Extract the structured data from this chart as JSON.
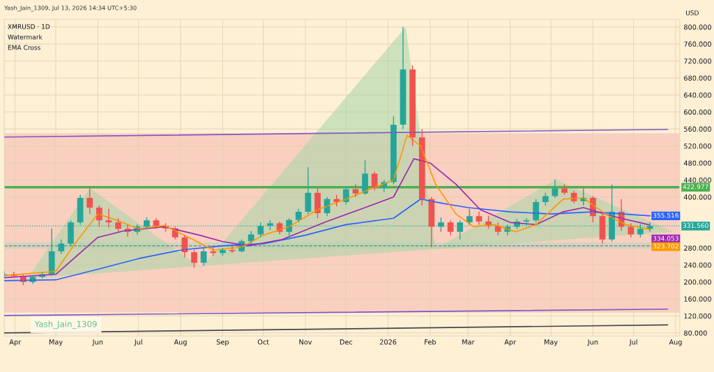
{
  "chart_data": {
    "type": "candlestick",
    "title": "XMRUSD · 1D",
    "subtitle": "Yash_Jain_1309, Jul 13, 2026 14:34 UTC+5:30",
    "ylabel": "USD",
    "annotations": [
      "Watermark",
      "EMA Cross",
      "Yash_Jain_1309"
    ],
    "x": [
      "2025-03-24",
      "2025-03-31",
      "2025-04-07",
      "2025-04-14",
      "2025-04-21",
      "2025-04-28",
      "2025-05-05",
      "2025-05-12",
      "2025-05-19",
      "2025-05-26",
      "2025-06-02",
      "2025-06-09",
      "2025-06-16",
      "2025-06-23",
      "2025-06-30",
      "2025-07-07",
      "2025-07-14",
      "2025-07-21",
      "2025-07-28",
      "2025-08-04",
      "2025-08-11",
      "2025-08-18",
      "2025-08-25",
      "2025-09-01",
      "2025-09-08",
      "2025-09-15",
      "2025-09-22",
      "2025-09-29",
      "2025-10-06",
      "2025-10-13",
      "2025-10-20",
      "2025-10-27",
      "2025-11-03",
      "2025-11-10",
      "2025-11-17",
      "2025-11-24",
      "2025-12-01",
      "2025-12-08",
      "2025-12-15",
      "2025-12-22",
      "2025-12-29",
      "2026-01-05",
      "2026-01-12",
      "2026-01-19",
      "2026-01-26",
      "2026-02-02",
      "2026-02-09",
      "2026-02-16",
      "2026-02-23",
      "2026-03-02",
      "2026-03-09",
      "2026-03-16",
      "2026-03-23",
      "2026-03-30",
      "2026-04-06",
      "2026-04-13",
      "2026-04-20",
      "2026-04-27",
      "2026-05-04",
      "2026-05-11",
      "2026-05-18",
      "2026-05-25",
      "2026-06-01",
      "2026-06-08",
      "2026-06-15",
      "2026-06-22",
      "2026-06-29",
      "2026-07-06",
      "2026-07-13"
    ],
    "ohlc": [
      [
        215,
        225,
        208,
        218
      ],
      [
        218,
        224,
        210,
        214
      ],
      [
        214,
        218,
        192,
        200
      ],
      [
        200,
        215,
        196,
        212
      ],
      [
        212,
        222,
        208,
        218
      ],
      [
        218,
        326,
        214,
        272
      ],
      [
        272,
        300,
        266,
        290
      ],
      [
        290,
        345,
        285,
        340
      ],
      [
        340,
        405,
        335,
        398
      ],
      [
        398,
        422,
        360,
        375
      ],
      [
        375,
        380,
        330,
        345
      ],
      [
        345,
        372,
        328,
        340
      ],
      [
        340,
        350,
        318,
        325
      ],
      [
        325,
        335,
        306,
        318
      ],
      [
        318,
        335,
        312,
        330
      ],
      [
        330,
        352,
        325,
        345
      ],
      [
        345,
        350,
        325,
        332
      ],
      [
        332,
        338,
        318,
        326
      ],
      [
        326,
        330,
        300,
        305
      ],
      [
        305,
        310,
        258,
        270
      ],
      [
        270,
        275,
        233,
        245
      ],
      [
        245,
        280,
        238,
        272
      ],
      [
        272,
        282,
        262,
        268
      ],
      [
        268,
        280,
        262,
        275
      ],
      [
        275,
        285,
        268,
        272
      ],
      [
        272,
        300,
        270,
        296
      ],
      [
        296,
        320,
        290,
        312
      ],
      [
        312,
        340,
        305,
        332
      ],
      [
        332,
        345,
        322,
        338
      ],
      [
        338,
        342,
        312,
        318
      ],
      [
        318,
        350,
        300,
        346
      ],
      [
        346,
        372,
        340,
        365
      ],
      [
        365,
        470,
        360,
        410
      ],
      [
        410,
        420,
        350,
        362
      ],
      [
        362,
        400,
        355,
        395
      ],
      [
        395,
        405,
        378,
        388
      ],
      [
        388,
        425,
        382,
        418
      ],
      [
        418,
        430,
        400,
        408
      ],
      [
        408,
        487,
        405,
        455
      ],
      [
        455,
        460,
        415,
        422
      ],
      [
        422,
        440,
        412,
        435
      ],
      [
        435,
        590,
        430,
        570
      ],
      [
        570,
        800,
        560,
        700
      ],
      [
        700,
        710,
        520,
        540
      ],
      [
        540,
        560,
        380,
        395
      ],
      [
        395,
        400,
        282,
        330
      ],
      [
        330,
        352,
        318,
        340
      ],
      [
        340,
        345,
        310,
        318
      ],
      [
        318,
        345,
        300,
        340
      ],
      [
        340,
        372,
        335,
        355
      ],
      [
        355,
        365,
        335,
        342
      ],
      [
        342,
        356,
        325,
        332
      ],
      [
        332,
        340,
        310,
        318
      ],
      [
        318,
        335,
        310,
        330
      ],
      [
        330,
        348,
        325,
        342
      ],
      [
        342,
        350,
        332,
        345
      ],
      [
        345,
        395,
        340,
        388
      ],
      [
        388,
        410,
        380,
        402
      ],
      [
        402,
        441,
        398,
        420
      ],
      [
        420,
        430,
        405,
        410
      ],
      [
        410,
        415,
        385,
        390
      ],
      [
        390,
        420,
        380,
        398
      ],
      [
        398,
        402,
        340,
        355
      ],
      [
        355,
        365,
        290,
        300
      ],
      [
        300,
        429,
        295,
        365
      ],
      [
        365,
        395,
        320,
        330
      ],
      [
        330,
        338,
        305,
        312
      ],
      [
        312,
        336,
        305,
        325
      ],
      [
        325,
        340,
        318,
        331.56
      ]
    ],
    "series": [
      {
        "type": "area",
        "color": "#a5d6a7",
        "x": [
          "2025-04-10",
          "2025-05-26",
          "2025-08-16",
          "2026-01-14",
          "2026-02-05",
          "2026-05-05",
          "2026-07-30"
        ],
        "values": [
          208,
          421,
          233,
          800,
          278,
          441,
          318
        ]
      },
      {
        "type": "line",
        "color": "#7e57c2",
        "x": [
          "2025-03-24",
          "2026-07-26"
        ],
        "values": [
          541,
          559
        ]
      },
      {
        "type": "line",
        "color": "#7e57c2",
        "x": [
          "2025-03-24",
          "2026-07-26"
        ],
        "values": [
          121,
          136
        ]
      },
      {
        "type": "line",
        "color": "#434651",
        "x": [
          "2025-03-24",
          "2026-07-26"
        ],
        "values": [
          80,
          99
        ]
      },
      {
        "type": "line",
        "color": "#2962ff",
        "x": [
          "2025-03-24",
          "2025-05-01",
          "2025-06-01",
          "2025-07-01",
          "2025-08-01",
          "2025-09-01",
          "2025-10-01",
          "2025-11-01",
          "2025-12-01",
          "2026-01-05",
          "2026-01-25",
          "2026-02-10",
          "2026-03-01",
          "2026-04-01",
          "2026-05-01",
          "2026-06-01",
          "2026-07-13"
        ],
        "values": [
          203,
          205,
          230,
          255,
          275,
          285,
          290,
          310,
          335,
          350,
          395,
          385,
          375,
          365,
          360,
          365,
          355.516
        ],
        "value_labels": [
          null,
          null,
          null,
          null,
          null,
          null,
          null,
          null,
          null,
          null,
          null,
          null,
          null,
          null,
          null,
          null,
          "355.516"
        ]
      },
      {
        "type": "line",
        "color": "#9c27b0",
        "x": [
          "2025-03-24",
          "2025-05-01",
          "2025-06-01",
          "2025-06-20",
          "2025-07-20",
          "2025-08-15",
          "2025-09-01",
          "2025-09-20",
          "2025-10-15",
          "2025-11-15",
          "2025-12-15",
          "2026-01-05",
          "2026-01-20",
          "2026-02-01",
          "2026-02-20",
          "2026-03-10",
          "2026-04-01",
          "2026-04-20",
          "2026-05-10",
          "2026-05-25",
          "2026-06-15",
          "2026-07-13"
        ],
        "values": [
          210,
          218,
          305,
          320,
          330,
          310,
          295,
          285,
          300,
          340,
          375,
          400,
          490,
          480,
          430,
          370,
          340,
          335,
          365,
          375,
          355,
          334.053
        ],
        "value_labels": [
          null,
          null,
          null,
          null,
          null,
          null,
          null,
          null,
          null,
          null,
          null,
          null,
          null,
          null,
          null,
          null,
          null,
          null,
          null,
          null,
          null,
          "334.053"
        ]
      },
      {
        "type": "line",
        "color": "#ff9800",
        "x": [
          "2025-03-24",
          "2025-05-01",
          "2025-05-15",
          "2025-06-01",
          "2025-06-15",
          "2025-07-01",
          "2025-07-20",
          "2025-08-10",
          "2025-08-25",
          "2025-09-15",
          "2025-10-01",
          "2025-10-20",
          "2025-11-10",
          "2025-12-01",
          "2025-12-20",
          "2026-01-05",
          "2026-01-15",
          "2026-01-25",
          "2026-02-05",
          "2026-02-20",
          "2026-03-05",
          "2026-03-20",
          "2026-04-05",
          "2026-04-20",
          "2026-05-10",
          "2026-05-25",
          "2026-06-10",
          "2026-06-25",
          "2026-07-13"
        ],
        "values": [
          215,
          225,
          290,
          360,
          345,
          325,
          333,
          300,
          275,
          282,
          310,
          330,
          370,
          395,
          420,
          440,
          545,
          520,
          430,
          360,
          330,
          335,
          318,
          335,
          395,
          398,
          360,
          335,
          323.702
        ],
        "value_labels": [
          null,
          null,
          null,
          null,
          null,
          null,
          null,
          null,
          null,
          null,
          null,
          null,
          null,
          null,
          null,
          null,
          null,
          null,
          null,
          null,
          null,
          null,
          null,
          null,
          null,
          null,
          null,
          null,
          "323.702"
        ]
      }
    ],
    "ref_lines": [
      {
        "axis": "y",
        "value": 422.977,
        "label": "422.977",
        "color": "#4caf50",
        "line_style": "solid"
      },
      {
        "axis": "y",
        "value": 331.56,
        "label": "331.560",
        "color": "#26a69a",
        "line_style": "dotted"
      },
      {
        "axis": "y",
        "value": 285,
        "color": "#787b86",
        "line_style": "dashed"
      }
    ],
    "bands": [
      {
        "axis": "y",
        "from": 128,
        "to": 550,
        "color": "#f9d0c0"
      },
      {
        "axis": "y",
        "from": 278,
        "to": 293,
        "color": "#d1d4c0"
      }
    ],
    "xlim": [
      "2025-03-24",
      "2026-08-04"
    ],
    "xticks": [
      {
        "value": "2025-04-01",
        "label": "Apr"
      },
      {
        "value": "2025-05-01",
        "label": "May"
      },
      {
        "value": "2025-06-01",
        "label": "Jun"
      },
      {
        "value": "2025-07-01",
        "label": "Jul"
      },
      {
        "value": "2025-08-01",
        "label": "Aug"
      },
      {
        "value": "2025-09-01",
        "label": "Sep"
      },
      {
        "value": "2025-10-01",
        "label": "Oct"
      },
      {
        "value": "2025-11-01",
        "label": "Nov"
      },
      {
        "value": "2025-12-01",
        "label": "Dec"
      },
      {
        "value": "2026-01-01",
        "label": "2026"
      },
      {
        "value": "2026-02-01",
        "label": "Feb"
      },
      {
        "value": "2026-03-01",
        "label": "Mar"
      },
      {
        "value": "2026-04-01",
        "label": "Apr"
      },
      {
        "value": "2026-05-01",
        "label": "May"
      },
      {
        "value": "2026-06-01",
        "label": "Jun"
      },
      {
        "value": "2026-07-01",
        "label": "Jul"
      },
      {
        "value": "2026-08-01",
        "label": "Aug"
      }
    ],
    "ylim": [
      73,
      818
    ],
    "yticks": [
      {
        "value": 80,
        "label": "80.000"
      },
      {
        "value": 120,
        "label": "120.000"
      },
      {
        "value": 160,
        "label": "160.000"
      },
      {
        "value": 200,
        "label": "200.000"
      },
      {
        "value": 240,
        "label": "240.000"
      },
      {
        "value": 280,
        "label": "280.000"
      },
      {
        "value": 400,
        "label": "400.000"
      },
      {
        "value": 440,
        "label": "440.000"
      },
      {
        "value": 480,
        "label": "480.000"
      },
      {
        "value": 520,
        "label": "520.000"
      },
      {
        "value": 560,
        "label": "560.000"
      },
      {
        "value": 600,
        "label": "600.000"
      },
      {
        "value": 640,
        "label": "640.000"
      },
      {
        "value": 680,
        "label": "680.000"
      },
      {
        "value": 720,
        "label": "720.000"
      },
      {
        "value": 760,
        "label": "760.000"
      },
      {
        "value": 800,
        "label": "800.000"
      }
    ],
    "grid": true
  }
}
